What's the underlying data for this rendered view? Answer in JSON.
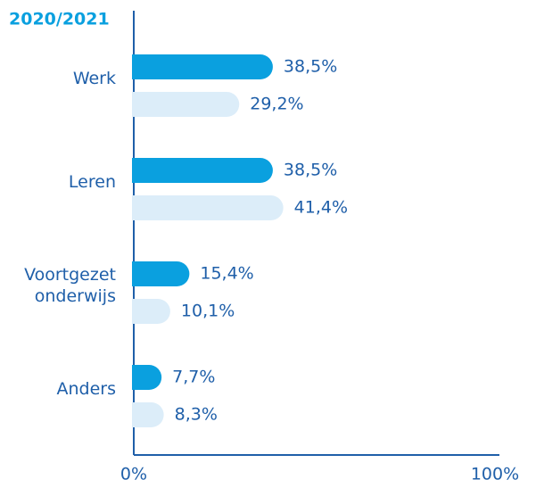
{
  "chart_data": {
    "type": "hbar",
    "categories": [
      "Werk",
      "Leren",
      "Voortgezet onderwijs",
      "Anders"
    ],
    "series": [
      {
        "name": "2020/2021",
        "color": "#0aa0df",
        "values": [
          38.5,
          38.5,
          15.4,
          7.7
        ],
        "value_labels": [
          "38,5%",
          "38,5%",
          "15,4%",
          "7,7%"
        ]
      },
      {
        "color": "#dcedf9",
        "values": [
          29.2,
          41.4,
          10.1,
          8.3
        ],
        "value_labels": [
          "29,2%",
          "41,4%",
          "10,1%",
          "8,3%"
        ]
      }
    ],
    "xlim": [
      0,
      100
    ],
    "xticks": [
      {
        "value": 0,
        "label": "0%"
      },
      {
        "value": 100,
        "label": "100%"
      }
    ]
  }
}
